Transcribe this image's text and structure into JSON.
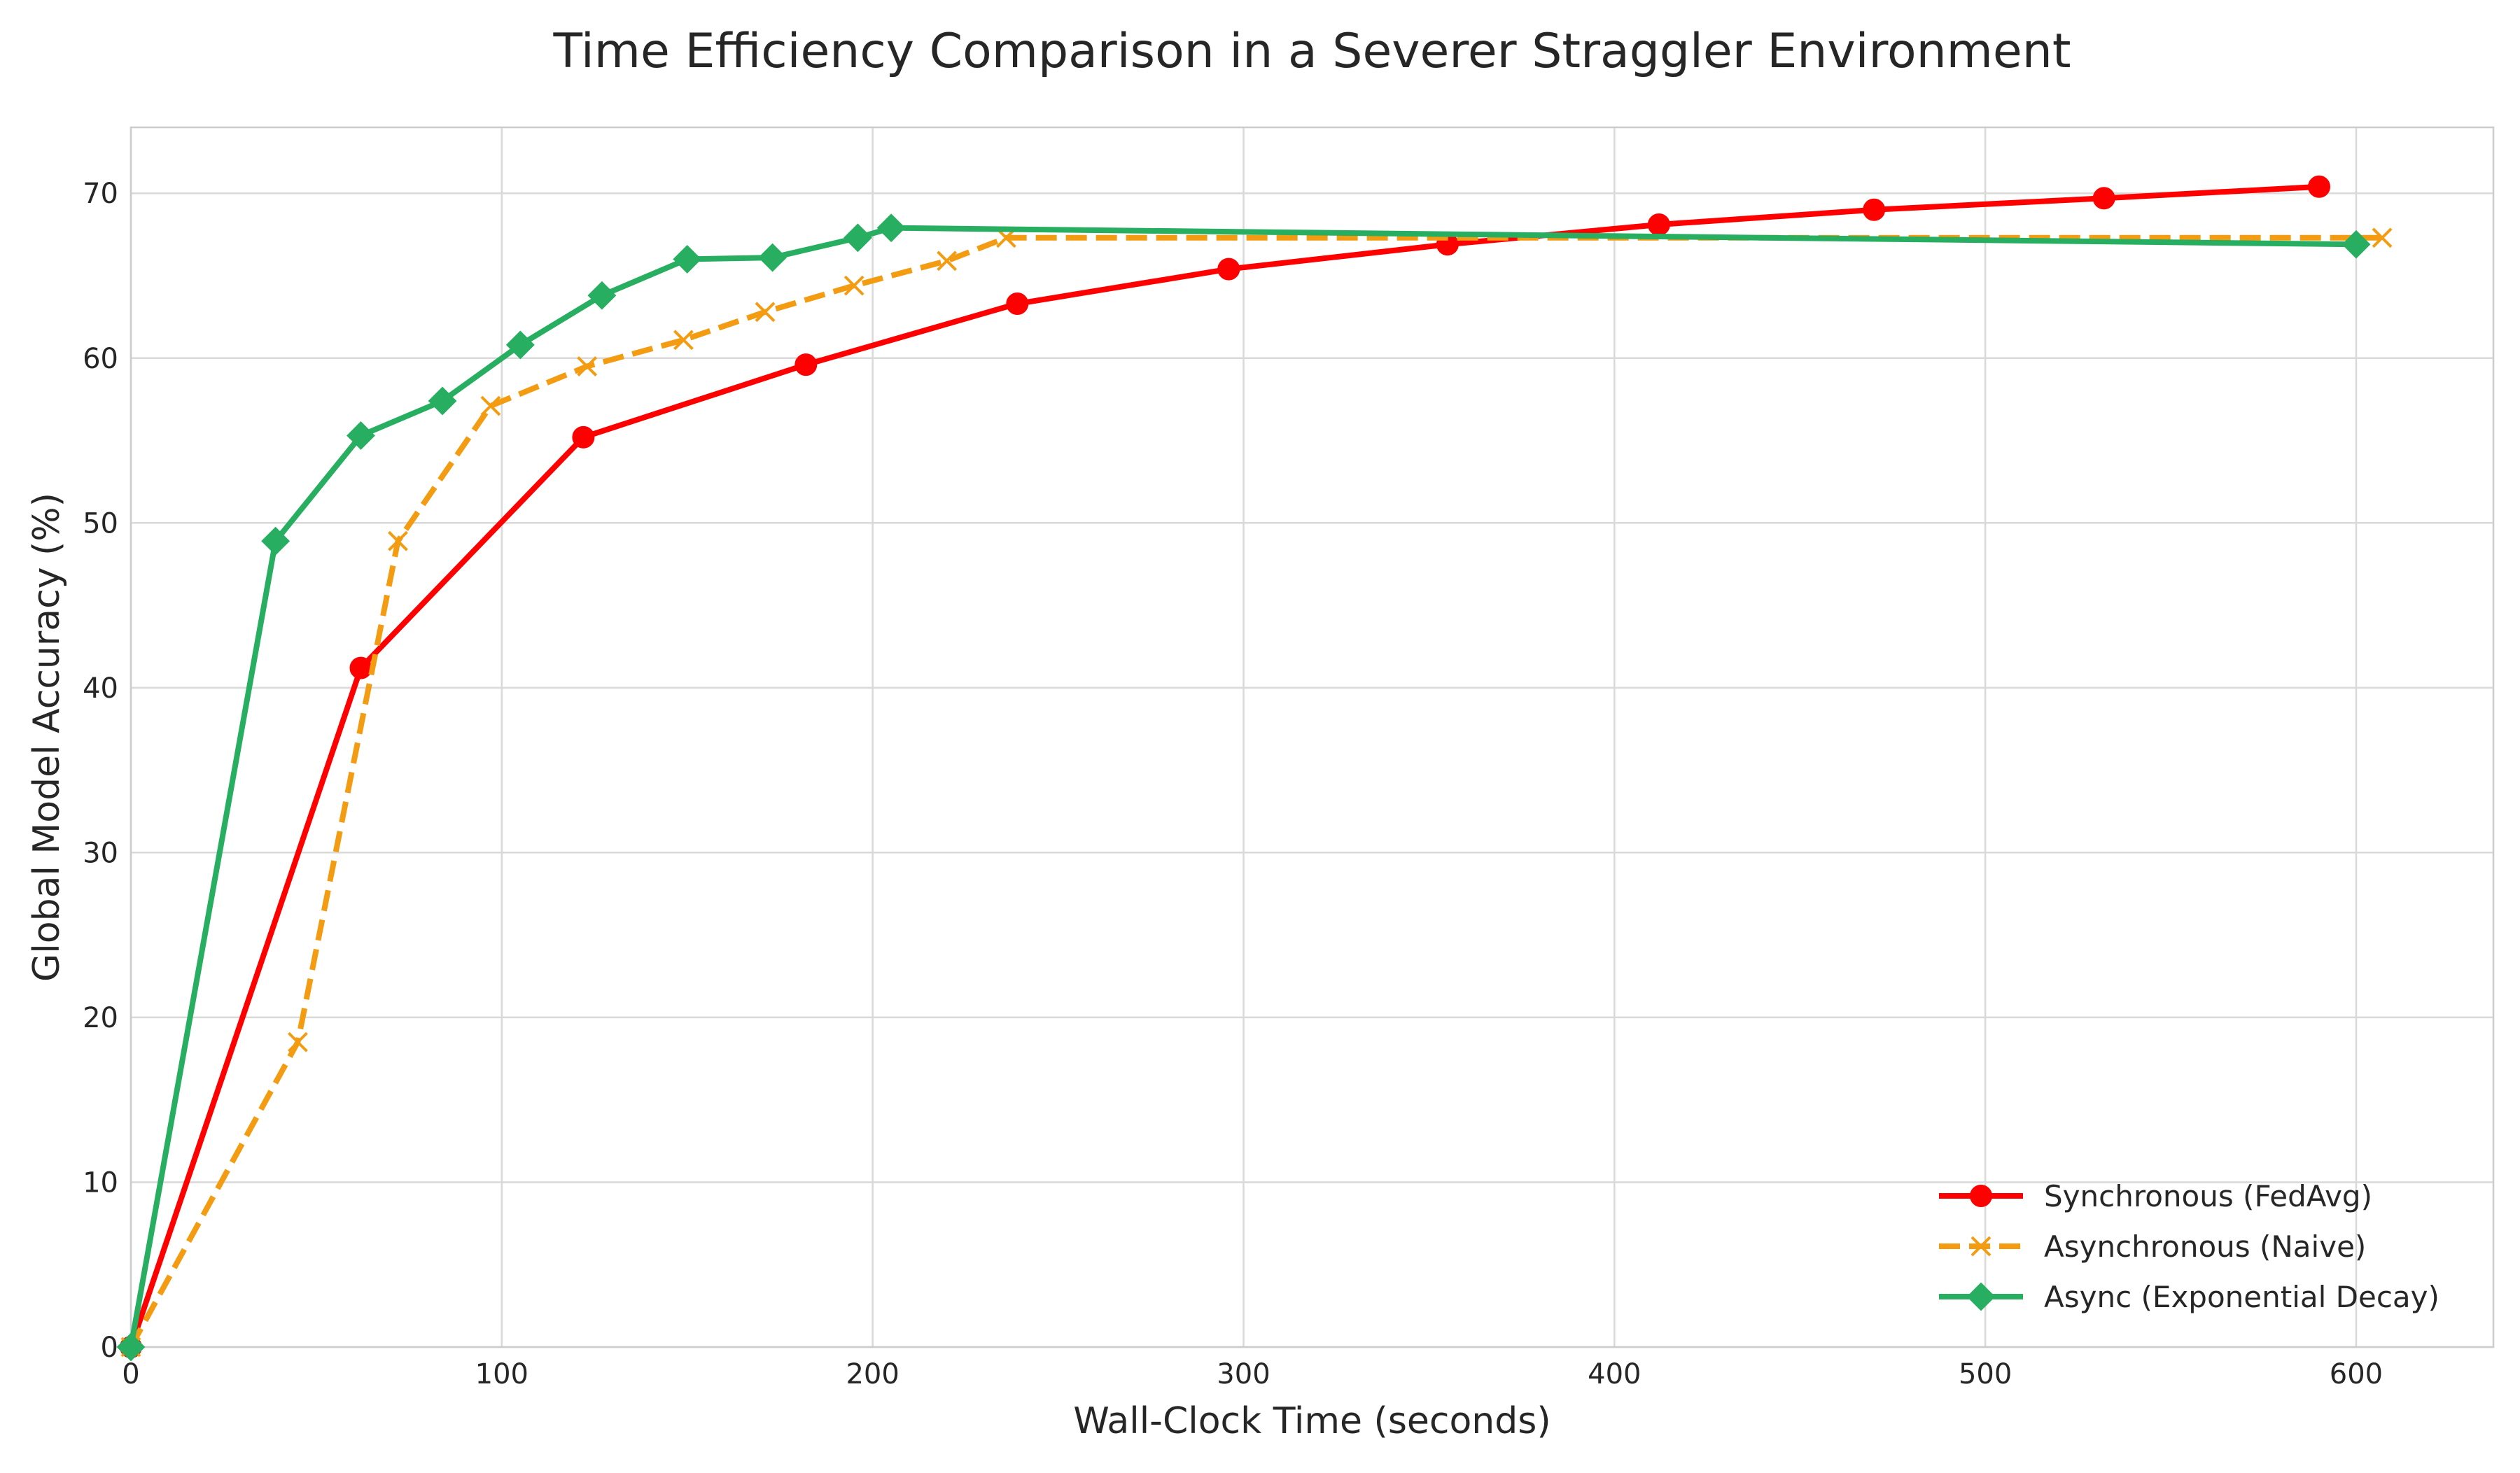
{
  "chart_data": {
    "type": "line",
    "title": "Time Efficiency Comparison in a Severer Straggler Environment",
    "xlabel": "Wall-Clock Time (seconds)",
    "ylabel": "Global Model Accuracy (%)",
    "xlim": [
      0,
      637
    ],
    "ylim": [
      0,
      74
    ],
    "xticks": [
      0,
      100,
      200,
      300,
      400,
      500,
      600
    ],
    "yticks": [
      0,
      10,
      20,
      30,
      40,
      50,
      60,
      70
    ],
    "grid": true,
    "legend_position": "bottom-right",
    "series": [
      {
        "name": "Synchronous (FedAvg)",
        "color": "#ff0000",
        "marker": "circle",
        "line_style": "solid",
        "x": [
          0,
          62,
          122,
          182,
          239,
          296,
          355,
          412,
          470,
          532,
          590
        ],
        "y": [
          0,
          41.2,
          55.2,
          59.6,
          63.3,
          65.4,
          66.9,
          68.1,
          69.0,
          69.7,
          70.4
        ]
      },
      {
        "name": "Asynchronous (Naive)",
        "color": "#f39c12",
        "marker": "x",
        "line_style": "dashed",
        "x": [
          0,
          45,
          72,
          97,
          123,
          149,
          171,
          195,
          220,
          236,
          607
        ],
        "y": [
          0,
          18.5,
          48.9,
          57.1,
          59.5,
          61.1,
          62.8,
          64.4,
          65.9,
          67.3,
          67.3
        ]
      },
      {
        "name": "Async (Exponential Decay)",
        "color": "#27ae60",
        "marker": "diamond",
        "line_style": "solid",
        "x": [
          0,
          39,
          62,
          84,
          105,
          127,
          150,
          173,
          196,
          205,
          600
        ],
        "y": [
          0,
          48.9,
          55.3,
          57.4,
          60.8,
          63.8,
          66.0,
          66.1,
          67.3,
          67.9,
          66.9
        ]
      }
    ]
  }
}
